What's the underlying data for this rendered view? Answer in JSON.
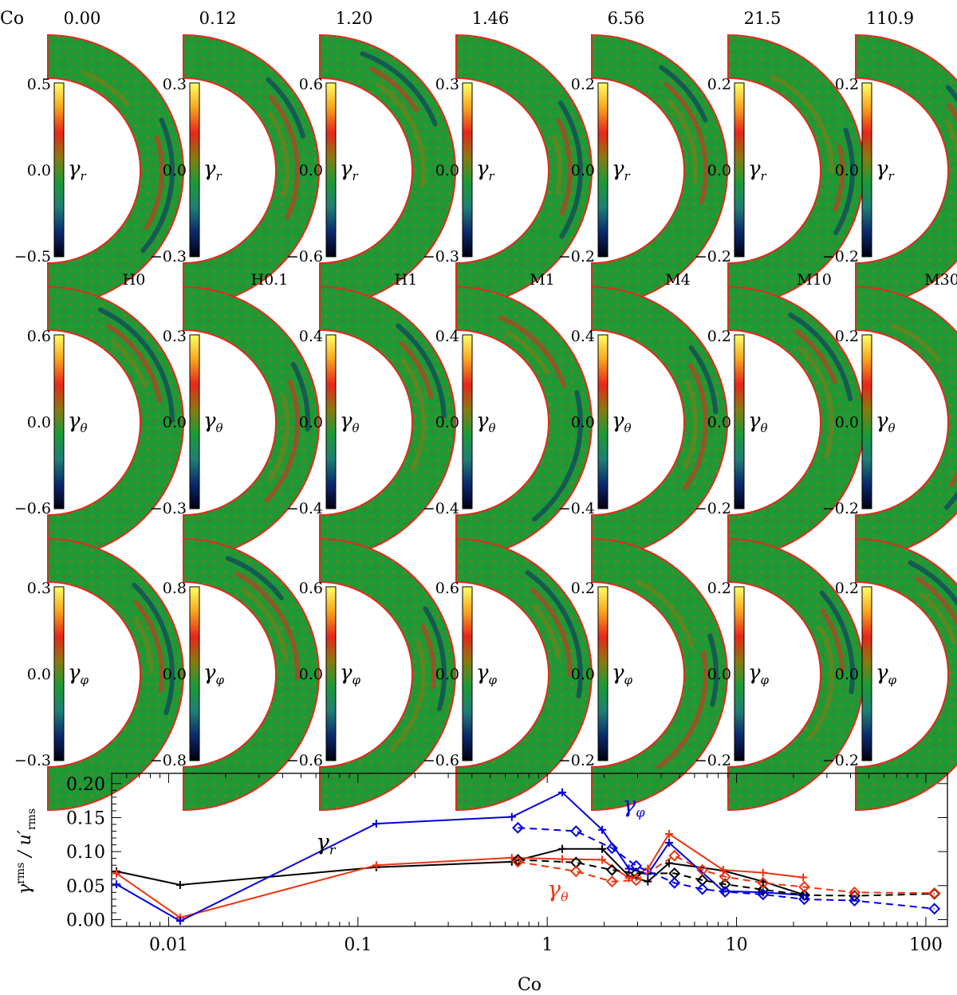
{
  "panels": {
    "co_label": "Co",
    "co_values": [
      "0.00",
      "0.12",
      "1.20",
      "1.46",
      "6.56",
      "21.5",
      "110.9"
    ],
    "run_names": [
      "H0",
      "H0.1",
      "H1",
      "M1",
      "M4",
      "M10",
      "M30"
    ],
    "row_labels": [
      "γ_r",
      "γ_θ",
      "γ_φ"
    ],
    "colorbar_ticks": [
      [
        [
          "0.5",
          "0.0",
          "−0.5"
        ],
        [
          "0.3",
          "0.0",
          "−0.3"
        ],
        [
          "0.6",
          "0.0",
          "−0.6"
        ],
        [
          "0.3",
          "0.0",
          "−0.3"
        ],
        [
          "0.2",
          "0.0",
          "−0.2"
        ],
        [
          "0.2",
          "0.0",
          "−0.2"
        ],
        [
          "0.2",
          "0.0",
          "−0.2"
        ]
      ],
      [
        [
          "0.6",
          "0.0",
          "−0.6"
        ],
        [
          "0.3",
          "0.0",
          "−0.3"
        ],
        [
          "0.4",
          "0.0",
          "−0.4"
        ],
        [
          "0.4",
          "0.0",
          "−0.4"
        ],
        [
          "0.4",
          "0.0",
          "−0.4"
        ],
        [
          "0.2",
          "0.0",
          "−0.2"
        ],
        [
          "0.2",
          "0.0",
          "−0.2"
        ]
      ],
      [
        [
          "0.3",
          "0.0",
          "−0.3"
        ],
        [
          "0.8",
          "0.0",
          "−0.8"
        ],
        [
          "0.6",
          "0.0",
          "−0.6"
        ],
        [
          "0.6",
          "0.0",
          "−0.6"
        ],
        [
          "0.2",
          "0.0",
          "−0.2"
        ],
        [
          "0.2",
          "0.0",
          "−0.2"
        ],
        [
          "0.2",
          "0.0",
          "−0.2"
        ]
      ]
    ],
    "colormap": [
      "#000010",
      "#0a2a6e",
      "#1f7f74",
      "#1c9a36",
      "#8a7a10",
      "#e8261a",
      "#f7a51c",
      "#ffff66"
    ]
  },
  "chart_data": {
    "type": "line",
    "xlabel": "Co",
    "ylabel": "γ^rms / u′_rms",
    "xscale": "log",
    "xlim": [
      0.005,
      130
    ],
    "ylim": [
      -0.01,
      0.215
    ],
    "xticks": [
      "0.01",
      "0.1",
      "1",
      "10",
      "100"
    ],
    "yticks": [
      "0.00",
      "0.05",
      "0.10",
      "0.15",
      "0.20"
    ],
    "ytick_values": [
      0,
      0.05,
      0.1,
      0.15,
      0.2
    ],
    "annotations": [
      {
        "text": "γ_r",
        "x": 0.06,
        "y": 0.103,
        "color": "#000000"
      },
      {
        "text": "γ_φ",
        "x": 2.5,
        "y": 0.158,
        "color": "#0000e0"
      },
      {
        "text": "γ_θ",
        "x": 1.0,
        "y": 0.034,
        "color": "#ee3311"
      }
    ],
    "series": [
      {
        "color": "#000000",
        "style": "solid",
        "marker": "plus",
        "x": [
          0.0053,
          0.0115,
          0.125,
          0.65,
          1.2,
          1.95,
          2.7,
          3.4,
          4.4,
          8.5,
          13.8,
          22.5
        ],
        "y": [
          0.071,
          0.051,
          0.077,
          0.085,
          0.104,
          0.104,
          0.064,
          0.056,
          0.083,
          0.072,
          0.056,
          0.037
        ]
      },
      {
        "color": "#ee3311",
        "style": "solid",
        "marker": "plus",
        "x": [
          0.0053,
          0.0115,
          0.125,
          0.65,
          1.2,
          1.95,
          2.7,
          3.4,
          4.4,
          8.5,
          13.8,
          22.5
        ],
        "y": [
          0.068,
          0.003,
          0.08,
          0.091,
          0.089,
          0.088,
          0.061,
          0.075,
          0.126,
          0.073,
          0.069,
          0.062
        ]
      },
      {
        "color": "#0000e0",
        "style": "solid",
        "marker": "plus",
        "x": [
          0.0053,
          0.0115,
          0.125,
          0.65,
          1.2,
          1.95,
          2.7,
          3.4,
          4.4,
          8.5,
          13.8,
          22.5
        ],
        "y": [
          0.052,
          -0.002,
          0.141,
          0.151,
          0.187,
          0.132,
          0.075,
          0.067,
          0.113,
          0.042,
          0.04,
          0.036
        ]
      },
      {
        "color": "#000000",
        "style": "dashed",
        "marker": "diamond",
        "x": [
          0.7,
          1.42,
          2.2,
          2.95,
          4.7,
          6.6,
          8.7,
          13.8,
          22.8,
          42,
          111
        ],
        "y": [
          0.088,
          0.084,
          0.073,
          0.068,
          0.068,
          0.058,
          0.052,
          0.044,
          0.036,
          0.035,
          0.038
        ]
      },
      {
        "color": "#ee3311",
        "style": "dashed",
        "marker": "diamond",
        "x": [
          0.7,
          1.42,
          2.2,
          2.95,
          4.7,
          6.6,
          8.7,
          13.8,
          22.8,
          42,
          111
        ],
        "y": [
          0.085,
          0.071,
          0.056,
          0.058,
          0.094,
          0.073,
          0.063,
          0.054,
          0.048,
          0.04,
          0.039
        ]
      },
      {
        "color": "#0000e0",
        "style": "dashed",
        "marker": "diamond",
        "x": [
          0.7,
          1.42,
          2.2,
          2.95,
          4.7,
          6.6,
          8.7,
          13.8,
          22.8,
          42,
          111
        ],
        "y": [
          0.135,
          0.13,
          0.105,
          0.079,
          0.054,
          0.045,
          0.041,
          0.037,
          0.03,
          0.028,
          0.016
        ]
      }
    ]
  }
}
